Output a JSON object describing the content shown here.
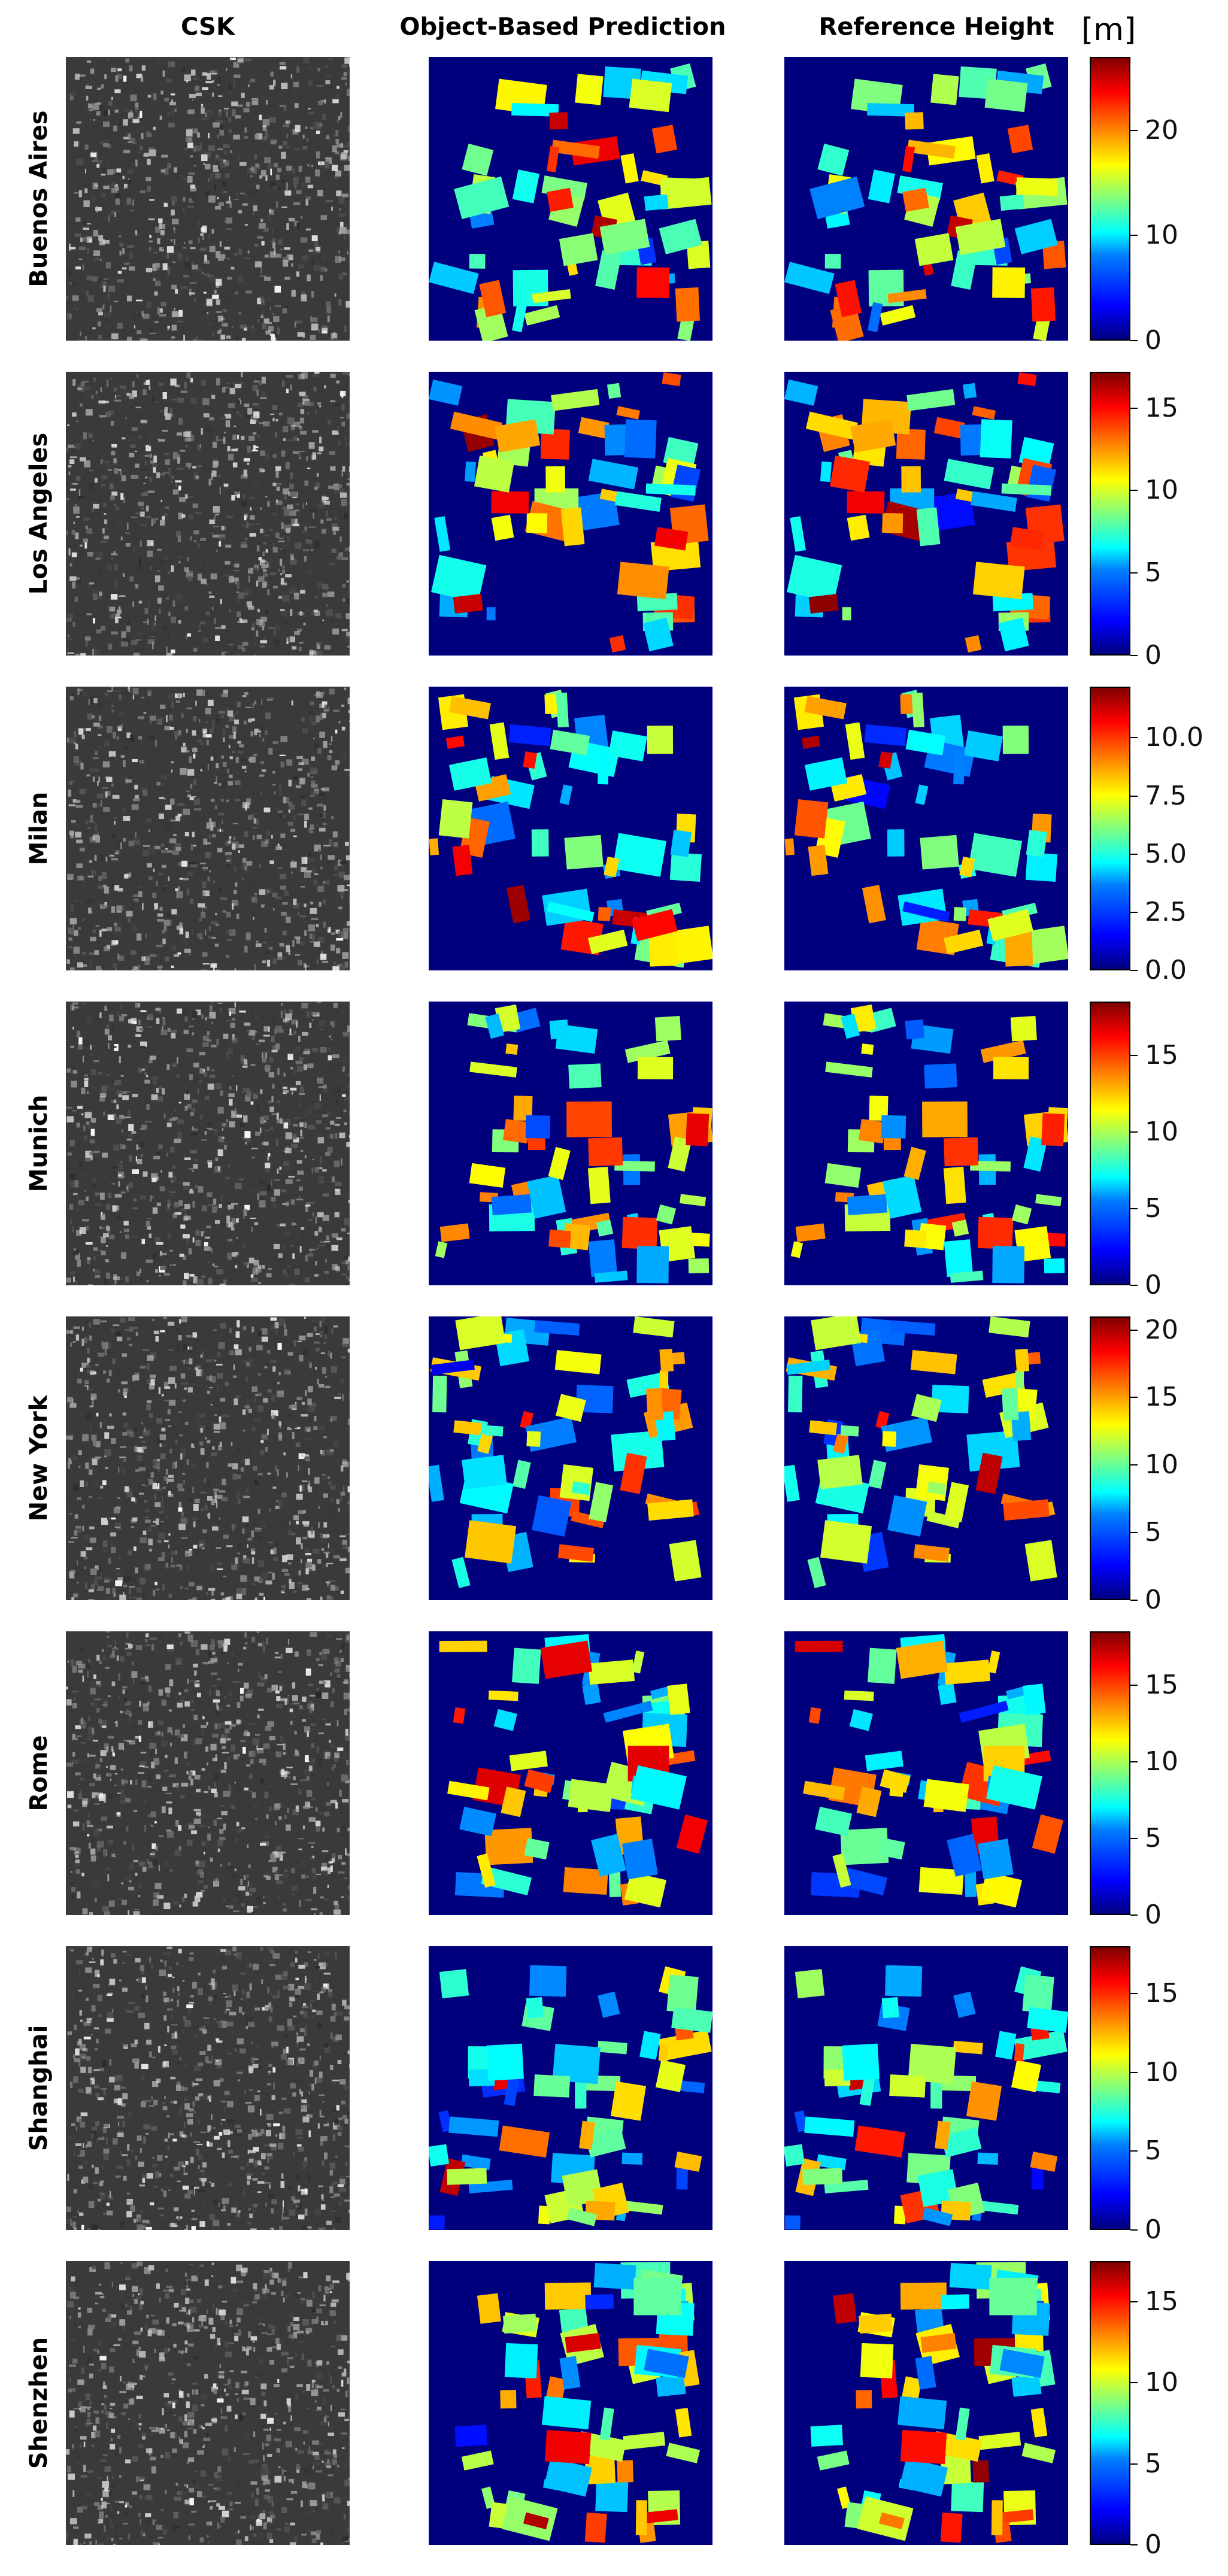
{
  "columns": {
    "csk": "CSK",
    "prediction": "Object-Based Prediction",
    "reference": "Reference Height"
  },
  "unit": "[m]",
  "colormap": [
    "#00007f",
    "#0000ff",
    "#007fff",
    "#00ffff",
    "#7fff7f",
    "#ffff00",
    "#ff7f00",
    "#ff0000",
    "#7f0000"
  ],
  "rows": [
    {
      "city": "Buenos Aires",
      "colorbar_range": [
        0,
        27
      ],
      "colorbar_ticks": [
        "0",
        "10",
        "20"
      ],
      "tick_values": [
        0,
        10,
        20
      ]
    },
    {
      "city": "Los Angeles",
      "colorbar_range": [
        0,
        17.2
      ],
      "colorbar_ticks": [
        "0",
        "5",
        "10",
        "15"
      ],
      "tick_values": [
        0,
        5,
        10,
        15
      ]
    },
    {
      "city": "Milan",
      "colorbar_range": [
        0,
        12.2
      ],
      "colorbar_ticks": [
        "0.0",
        "2.5",
        "5.0",
        "7.5",
        "10.0"
      ],
      "tick_values": [
        0,
        2.5,
        5,
        7.5,
        10
      ]
    },
    {
      "city": "Munich",
      "colorbar_range": [
        0,
        18.5
      ],
      "colorbar_ticks": [
        "0",
        "5",
        "10",
        "15"
      ],
      "tick_values": [
        0,
        5,
        10,
        15
      ]
    },
    {
      "city": "New York",
      "colorbar_range": [
        0,
        21
      ],
      "colorbar_ticks": [
        "0",
        "5",
        "10",
        "15",
        "20"
      ],
      "tick_values": [
        0,
        5,
        10,
        15,
        20
      ]
    },
    {
      "city": "Rome",
      "colorbar_range": [
        0,
        18.5
      ],
      "colorbar_ticks": [
        "0",
        "5",
        "10",
        "15"
      ],
      "tick_values": [
        0,
        5,
        10,
        15
      ]
    },
    {
      "city": "Shanghai",
      "colorbar_range": [
        0,
        18
      ],
      "colorbar_ticks": [
        "0",
        "5",
        "10",
        "15"
      ],
      "tick_values": [
        0,
        5,
        10,
        15
      ]
    },
    {
      "city": "Shenzhen",
      "colorbar_range": [
        0,
        17.5
      ],
      "colorbar_ticks": [
        "0",
        "5",
        "10",
        "15"
      ],
      "tick_values": [
        0,
        5,
        10,
        15
      ]
    }
  ]
}
